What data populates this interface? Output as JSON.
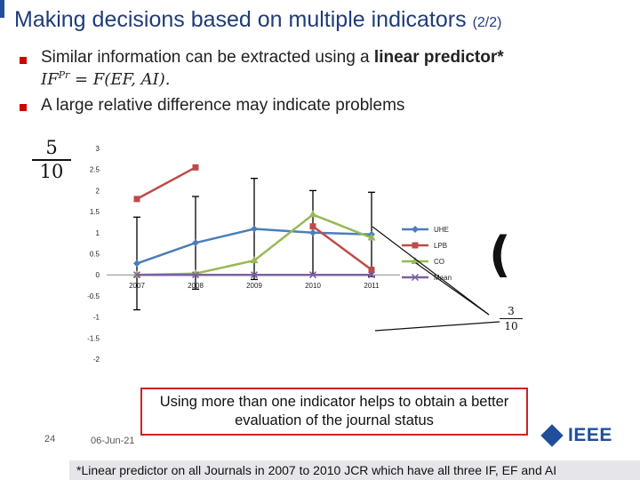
{
  "slide": {
    "title": "Making decisions based on multiple indicators",
    "title_part": "(2/2)",
    "bullet1_text": "Similar information can be extracted using a ",
    "bullet1_bold": "linear predictor*",
    "formula": {
      "lhs": "IF",
      "sup": "Pr",
      "rhs": " = F(EF, AI)."
    },
    "bullet2_text": "A large relative difference   may indicate problems",
    "frac_big": {
      "num": "5",
      "den": "10"
    },
    "frac_small": {
      "num": "3",
      "den": "10"
    },
    "brace": "(",
    "callout": "Using more than one indicator helps to obtain a better evaluation of the journal status",
    "page_number": "24",
    "date": "06-Jun-21",
    "logo_text": "IEEE",
    "footnote": "*Linear predictor on all Journals in 2007 to 2010 JCR which have all three IF, EF and AI",
    "colors": {
      "title": "#1f3c7a",
      "bullet": "#cc0000",
      "callout_border": "#cc2222",
      "logo": "#1f4e9c"
    }
  },
  "chart_data": {
    "type": "line",
    "categories": [
      "2007",
      "2008",
      "2009",
      "2010",
      "2011"
    ],
    "y_ticks": [
      "3",
      "2.5",
      "2",
      "1.5",
      "1",
      "0.5",
      "0",
      "-0.5",
      "-1",
      "-1.5",
      "-2"
    ],
    "ylim": [
      -2,
      3
    ],
    "legend_position": "right",
    "series": [
      {
        "name": "UHE",
        "color": "#4a7ebb",
        "marker": "diamond",
        "values": [
          0.27,
          0.76,
          1.09,
          1.0,
          0.96
        ],
        "error": [
          1.1,
          1.1,
          1.2,
          1.0,
          1.0
        ]
      },
      {
        "name": "LPB",
        "color": "#be4b48",
        "marker": "square",
        "values": [
          1.8,
          2.55,
          null,
          1.15,
          0.12
        ]
      },
      {
        "name": "CO",
        "color": "#98b954",
        "marker": "triangle",
        "values": [
          0.0,
          0.03,
          0.34,
          1.43,
          0.88
        ]
      },
      {
        "name": "Mean",
        "color": "#7d60a0",
        "marker": "x",
        "values": [
          0.0,
          0.0,
          0.0,
          0.0,
          0.0
        ]
      }
    ]
  }
}
